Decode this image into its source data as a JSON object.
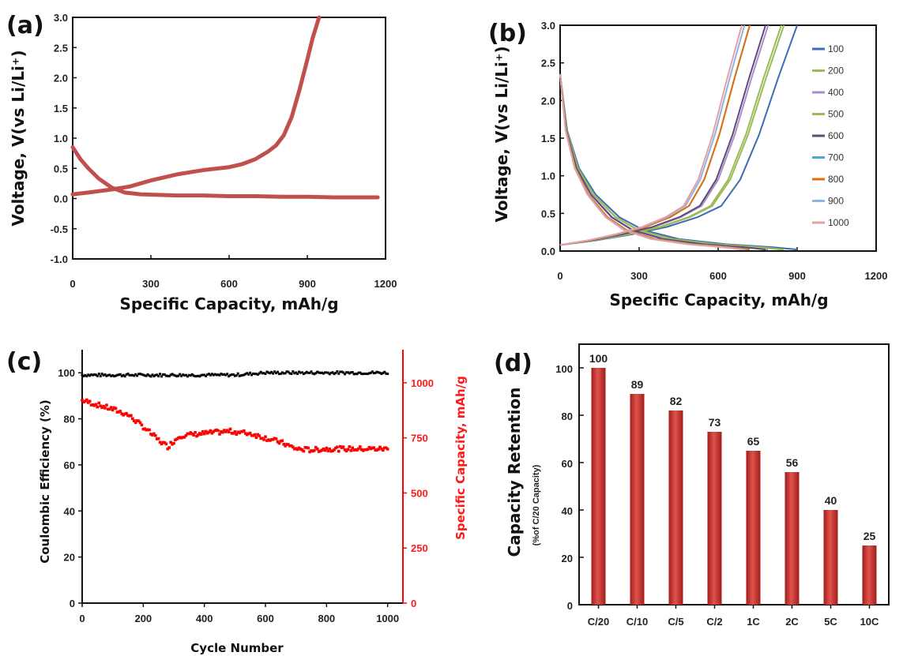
{
  "chart_data": [
    {
      "panel": "(a)",
      "type": "line",
      "xlabel": "Specific Capacity, mAh/g",
      "ylabel": "Voltage, V(vs Li/Li⁺)",
      "xlim": [
        0,
        1200
      ],
      "ylim": [
        -1.0,
        3.0
      ],
      "xticks": [
        0,
        300,
        600,
        900,
        1200
      ],
      "yticks": [
        -1.0,
        -0.5,
        0.0,
        0.5,
        1.0,
        1.5,
        2.0,
        2.5,
        3.0
      ],
      "color": "#c0504d",
      "series": [
        {
          "x": [
            0,
            30,
            60,
            100,
            150,
            200,
            260,
            330,
            400,
            500,
            600,
            700,
            800,
            900,
            1000,
            1100,
            1170
          ],
          "y": [
            0.85,
            0.65,
            0.5,
            0.33,
            0.18,
            0.1,
            0.07,
            0.06,
            0.05,
            0.05,
            0.04,
            0.04,
            0.03,
            0.03,
            0.02,
            0.02,
            0.02
          ]
        },
        {
          "x": [
            0,
            60,
            150,
            220,
            300,
            400,
            500,
            600,
            650,
            700,
            750,
            780,
            810,
            840,
            870,
            900,
            920,
            945
          ],
          "y": [
            0.07,
            0.1,
            0.15,
            0.2,
            0.3,
            0.4,
            0.47,
            0.52,
            0.57,
            0.65,
            0.78,
            0.88,
            1.05,
            1.35,
            1.8,
            2.3,
            2.65,
            3.0
          ]
        }
      ]
    },
    {
      "panel": "(b)",
      "type": "line",
      "xlabel": "Specific Capacity, mAh/g",
      "ylabel": "Voltage, V(vs Li/Li⁺)",
      "xlim": [
        0,
        1200
      ],
      "ylim": [
        0.0,
        3.0
      ],
      "xticks": [
        0,
        300,
        600,
        900,
        1200
      ],
      "yticks": [
        0.0,
        0.5,
        1.0,
        1.5,
        2.0,
        2.5,
        3.0
      ],
      "legend_position": "right",
      "series": [
        {
          "name": "100",
          "color": "#3d6cb3",
          "cap": 900
        },
        {
          "name": "200",
          "color": "#9bbb59",
          "cap": 850
        },
        {
          "name": "400",
          "color": "#a98ec8",
          "cap": 790
        },
        {
          "name": "500",
          "color": "#9bbb59",
          "cap": 840
        },
        {
          "name": "600",
          "color": "#604a7b",
          "cap": 780
        },
        {
          "name": "700",
          "color": "#4bacc6",
          "cap": 720
        },
        {
          "name": "800",
          "color": "#e46c0a",
          "cap": 720
        },
        {
          "name": "900",
          "color": "#8eb4e3",
          "cap": 700
        },
        {
          "name": "1000",
          "color": "#e6a0a0",
          "cap": 690
        }
      ]
    },
    {
      "panel": "(c)",
      "type": "scatter",
      "xlabel": "Cycle Number",
      "ylabel": "Coulombic Efficiency (%)",
      "ylabel_right": "Specific Capacity, mAh/g",
      "xlim": [
        0,
        1050
      ],
      "ylim": [
        0,
        110
      ],
      "ylim_right": [
        0,
        1150
      ],
      "xticks": [
        0,
        200,
        400,
        600,
        800,
        1000
      ],
      "yticks": [
        0,
        20,
        40,
        60,
        80,
        100
      ],
      "yticks_right": [
        0,
        250,
        500,
        750,
        1000
      ],
      "series": [
        {
          "name": "Coulombic Efficiency",
          "color": "#000000",
          "x": [
            0,
            100,
            200,
            300,
            400,
            500,
            600,
            700,
            800,
            900,
            1000
          ],
          "y": [
            99,
            99,
            99,
            99,
            99,
            99,
            100,
            100,
            100,
            100,
            100
          ]
        },
        {
          "name": "Specific Capacity",
          "color": "#ff0000",
          "axis": "right",
          "x": [
            0,
            50,
            100,
            150,
            200,
            250,
            280,
            320,
            400,
            480,
            550,
            650,
            700,
            750,
            800,
            900,
            1000
          ],
          "y": [
            920,
            900,
            880,
            855,
            800,
            740,
            710,
            760,
            770,
            780,
            770,
            730,
            700,
            695,
            700,
            700,
            700
          ]
        }
      ]
    },
    {
      "panel": "(d)",
      "type": "bar",
      "ylabel": "Capacity Retention",
      "ylabel_sub": "(%of C/20 Capacity)",
      "categories": [
        "C/20",
        "C/10",
        "C/5",
        "C/2",
        "1C",
        "2C",
        "5C",
        "10C"
      ],
      "values": [
        100,
        89,
        82,
        73,
        65,
        56,
        40,
        25
      ],
      "ylim": [
        0,
        110
      ],
      "yticks": [
        0,
        20,
        40,
        60,
        80,
        100
      ],
      "color": "#c0302b"
    }
  ]
}
